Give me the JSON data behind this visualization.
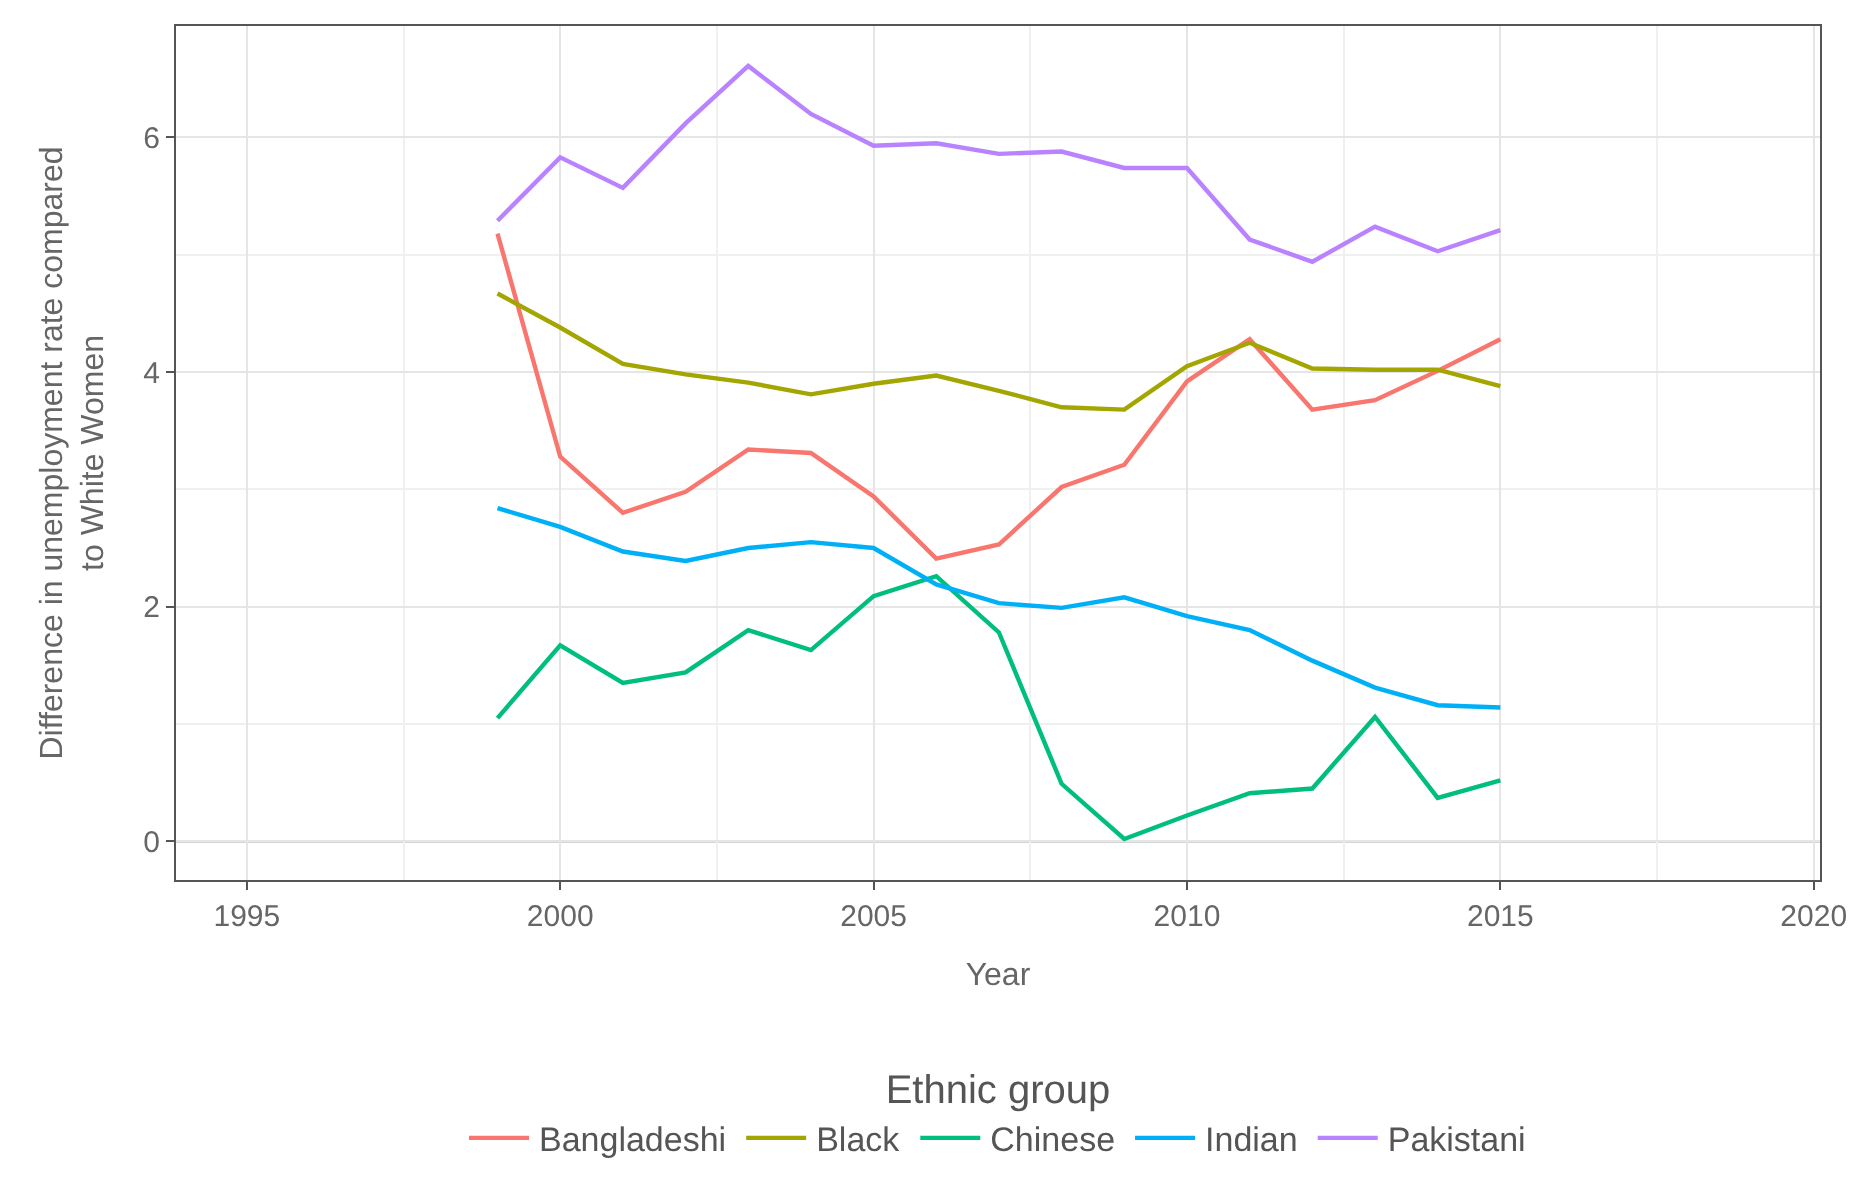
{
  "chart_data": {
    "type": "line",
    "xlabel": "Year",
    "ylabel": "Difference in unemployment rate compared\nto White Women",
    "legend_title": "Ethnic group",
    "legend": "bottom",
    "grid": true,
    "x": [
      1999,
      2000,
      2001,
      2002,
      2003,
      2004,
      2005,
      2006,
      2007,
      2008,
      2009,
      2010,
      2011,
      2012,
      2013,
      2014,
      2015
    ],
    "series": [
      {
        "name": "Bangladeshi",
        "color": "#f8766d",
        "values": [
          5.18,
          3.28,
          2.8,
          2.98,
          3.34,
          3.31,
          2.94,
          2.41,
          2.53,
          3.02,
          3.21,
          3.92,
          4.28,
          3.68,
          3.76,
          4.01,
          4.28
        ]
      },
      {
        "name": "Black",
        "color": "#a3a500",
        "values": [
          4.67,
          4.38,
          4.07,
          3.98,
          3.91,
          3.81,
          3.9,
          3.97,
          3.84,
          3.7,
          3.68,
          4.05,
          4.25,
          4.03,
          4.02,
          4.02,
          3.88
        ]
      },
      {
        "name": "Chinese",
        "color": "#00bf7d",
        "values": [
          1.05,
          1.67,
          1.35,
          1.44,
          1.8,
          1.63,
          2.09,
          2.26,
          1.78,
          0.49,
          0.02,
          0.22,
          0.41,
          0.45,
          1.06,
          0.37,
          0.52
        ]
      },
      {
        "name": "Indian",
        "color": "#00b0f6",
        "values": [
          2.84,
          2.68,
          2.47,
          2.39,
          2.5,
          2.55,
          2.5,
          2.19,
          2.03,
          1.99,
          2.08,
          1.92,
          1.8,
          1.54,
          1.31,
          1.16,
          1.14
        ]
      },
      {
        "name": "Pakistani",
        "color": "#b983ff",
        "values": [
          5.29,
          5.83,
          5.57,
          6.12,
          6.61,
          6.2,
          5.93,
          5.95,
          5.86,
          5.88,
          5.74,
          5.74,
          5.13,
          4.94,
          5.24,
          5.03,
          5.21
        ]
      }
    ],
    "xlim": [
      1993.87,
      2020.1
    ],
    "ylim": [
      -0.33,
      6.95
    ],
    "xticks": [
      1995,
      2000,
      2005,
      2010,
      2015,
      2020
    ],
    "yticks": [
      0,
      2,
      4,
      6
    ],
    "ref_lines": [
      {
        "axis": "y",
        "value": 0,
        "color": "#555555"
      }
    ]
  }
}
